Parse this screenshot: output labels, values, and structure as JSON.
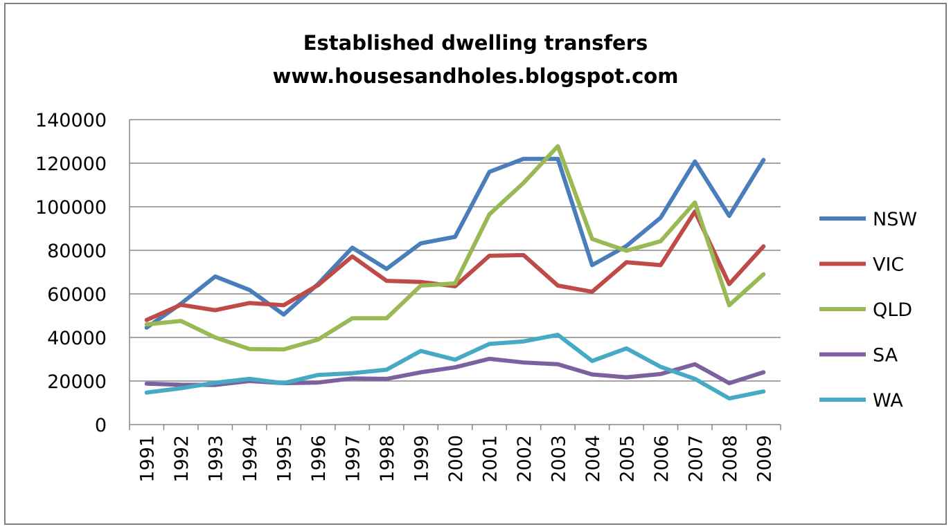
{
  "chart_data": {
    "type": "line",
    "title": "Established dwelling transfers",
    "subtitle": "www.housesandholes.blogspot.com",
    "xlabel": "",
    "ylabel": "",
    "ylim": [
      0,
      140000
    ],
    "yticks": [
      "0",
      "20000",
      "40000",
      "60000",
      "80000",
      "100000",
      "120000",
      "140000"
    ],
    "grid": true,
    "legend_position": "right",
    "categories": [
      "1991",
      "1992",
      "1993",
      "1994",
      "1995",
      "1996",
      "1997",
      "1998",
      "1999",
      "2000",
      "2001",
      "2002",
      "2003",
      "2004",
      "2005",
      "2006",
      "2007",
      "2008",
      "2009"
    ],
    "series": [
      {
        "name": "NSW",
        "color": "#4a7ebb",
        "values": [
          44500,
          55500,
          68000,
          61800,
          50500,
          64500,
          81200,
          71500,
          83200,
          86200,
          116000,
          122000,
          122000,
          73200,
          82000,
          95000,
          120800,
          95800,
          121500
        ]
      },
      {
        "name": "VIC",
        "color": "#be4b48",
        "values": [
          48000,
          55000,
          52500,
          55800,
          54800,
          64000,
          77200,
          66000,
          65500,
          63500,
          77500,
          77800,
          63800,
          61000,
          74500,
          73200,
          97800,
          64500,
          81800
        ]
      },
      {
        "name": "QLD",
        "color": "#98b954",
        "values": [
          46000,
          47600,
          40000,
          34700,
          34500,
          39000,
          48800,
          48800,
          63800,
          64800,
          96500,
          111000,
          127800,
          85200,
          79800,
          84200,
          102000,
          54800,
          69000
        ]
      },
      {
        "name": "SA",
        "color": "#7d60a0",
        "values": [
          18800,
          18300,
          18200,
          20000,
          19000,
          19300,
          21200,
          21000,
          24000,
          26300,
          30200,
          28500,
          27700,
          23000,
          21700,
          23200,
          27700,
          19000,
          24000
        ]
      },
      {
        "name": "WA",
        "color": "#46aac5",
        "values": [
          14700,
          16700,
          19200,
          21000,
          19000,
          22800,
          23600,
          25200,
          33800,
          29800,
          37000,
          38200,
          41200,
          29200,
          35000,
          26500,
          21000,
          12000,
          15200
        ]
      }
    ]
  }
}
